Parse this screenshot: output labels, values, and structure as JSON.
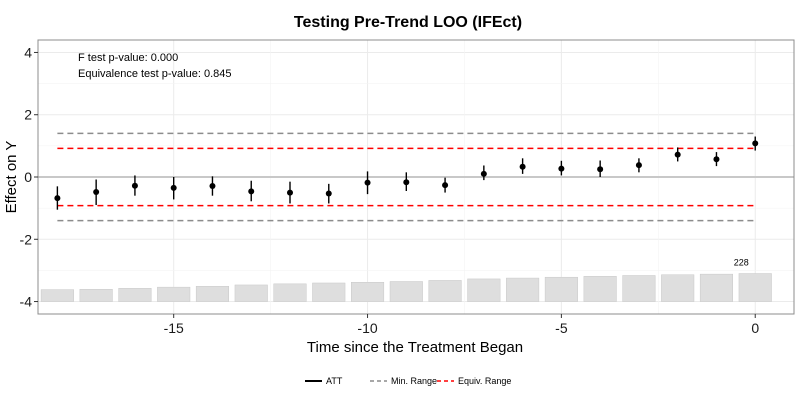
{
  "chart_data": {
    "type": "point-range",
    "title": "Testing Pre-Trend LOO (IFEct)",
    "xlabel": "Time since the Treatment Began",
    "ylabel": "Effect on Y",
    "xlim": [
      -18.5,
      1
    ],
    "ylim": [
      -4.4,
      4.4
    ],
    "x_ticks": [
      -15,
      -10,
      -5,
      0
    ],
    "y_ticks": [
      -4,
      -2,
      0,
      2,
      4
    ],
    "grid": true,
    "annotations": [
      "F test p-value: 0.000",
      "Equivalence test p-value: 0.845"
    ],
    "reference_lines": {
      "zero": 0,
      "min_range": [
        -1.4,
        1.4
      ],
      "equiv_range": [
        -0.92,
        0.92
      ],
      "x_start": -18,
      "x_end": 0
    },
    "series": [
      {
        "name": "ATT",
        "x": [
          -18,
          -17,
          -16,
          -15,
          -14,
          -13,
          -12,
          -11,
          -10,
          -9,
          -8,
          -7,
          -6,
          -5,
          -4,
          -3,
          -2,
          -1,
          0
        ],
        "y": [
          -0.68,
          -0.48,
          -0.28,
          -0.35,
          -0.29,
          -0.46,
          -0.5,
          -0.53,
          -0.18,
          -0.17,
          -0.26,
          0.1,
          0.33,
          0.27,
          0.25,
          0.38,
          0.72,
          0.57,
          1.08
        ],
        "lower": [
          -1.05,
          -0.9,
          -0.6,
          -0.72,
          -0.6,
          -0.78,
          -0.85,
          -0.85,
          -0.55,
          -0.45,
          -0.5,
          -0.1,
          0.1,
          0.05,
          0.0,
          0.15,
          0.5,
          0.35,
          0.85
        ],
        "upper": [
          -0.3,
          -0.08,
          0.05,
          0.0,
          0.02,
          -0.12,
          -0.15,
          -0.22,
          0.18,
          0.15,
          -0.02,
          0.37,
          0.6,
          0.52,
          0.53,
          0.6,
          0.95,
          0.8,
          1.3
        ]
      }
    ],
    "count_bars": {
      "x": [
        -18,
        -17,
        -16,
        -15,
        -14,
        -13,
        -12,
        -11,
        -10,
        -9,
        -8,
        -7,
        -6,
        -5,
        -4,
        -3,
        -2,
        -1,
        0
      ],
      "values": [
        97,
        100,
        108,
        117,
        124,
        135,
        144,
        151,
        157,
        163,
        172,
        184,
        191,
        198,
        205,
        212,
        218,
        223,
        228
      ],
      "labeled_value": "228"
    },
    "legend": {
      "position": "bottom",
      "entries": [
        {
          "label": "ATT",
          "style": "solid",
          "color": "#000000"
        },
        {
          "label": "Min. Range",
          "style": "dashed",
          "color": "#8c8c8c"
        },
        {
          "label": "Equiv. Range",
          "style": "dashed",
          "color": "#ff0000"
        }
      ]
    },
    "colors": {
      "point": "#000000",
      "min_range": "#8c8c8c",
      "equiv_range": "#ff0000",
      "count_bar": "#dedede",
      "count_bar_stroke": "#c8c8c8",
      "zero_line": "#c8c8c8",
      "grid": "#ebebeb",
      "panel_border": "#8c8c8c"
    }
  }
}
